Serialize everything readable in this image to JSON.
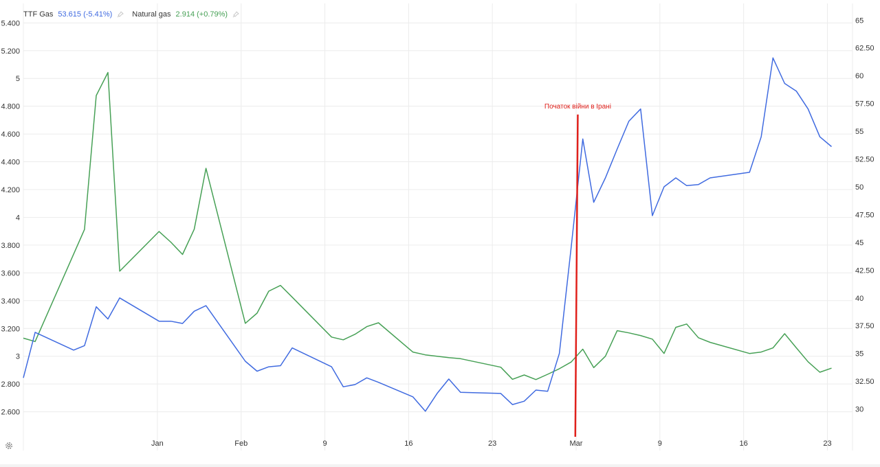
{
  "legend": {
    "s1_name": "TTF Gas",
    "s1_value": "53.615 (-5.41%)",
    "s2_name": "Natural gas",
    "s2_value": "2.914 (+0.79%)"
  },
  "chart_data": {
    "type": "line",
    "grid": true,
    "left_axis": {
      "range": [
        2.42,
        5.54
      ],
      "ticks": [
        2.6,
        2.8,
        3.0,
        3.2,
        3.4,
        3.6,
        3.8,
        4.0,
        4.2,
        4.4,
        4.6,
        4.8,
        5.0,
        5.2,
        5.4
      ],
      "tick_labels": [
        "2.600",
        "2.800",
        "3",
        "3.200",
        "3.400",
        "3.600",
        "3.800",
        "4",
        "4.200",
        "4.400",
        "4.600",
        "4.800",
        "5",
        "5.200",
        "5.400"
      ]
    },
    "right_axis": {
      "range": [
        27.5,
        66.5
      ],
      "ticks": [
        30,
        32.5,
        35,
        37.5,
        40,
        42.5,
        45,
        47.5,
        50,
        52.5,
        55,
        57.5,
        60,
        62.5,
        65
      ],
      "tick_labels": [
        "30",
        "32.50",
        "35",
        "37.50",
        "40",
        "42.50",
        "45",
        "47.50",
        "50",
        "52.50",
        "55",
        "57.50",
        "60",
        "62.50",
        "65"
      ]
    },
    "x_axis": {
      "range": [
        0,
        99
      ],
      "ticks": [
        16,
        26,
        36,
        46,
        56,
        66,
        76,
        86,
        96
      ],
      "tick_labels": [
        "Jan",
        "Feb",
        "9",
        "16",
        "23",
        "Mar",
        "9",
        "16",
        "23"
      ]
    },
    "series": [
      {
        "name": "TTF Gas",
        "axis": "right",
        "color": "#3f6ae0",
        "x": [
          0,
          1.4,
          6,
          7.3,
          8.7,
          10.1,
          11.5,
          16.2,
          17.6,
          19,
          20.4,
          21.8,
          26.5,
          27.9,
          29.3,
          30.7,
          32.1,
          36.8,
          38.2,
          39.6,
          41,
          42.4,
          46.5,
          48,
          49.4,
          50.8,
          52.2,
          57,
          58.4,
          59.8,
          61.2,
          62.6,
          64,
          65.4,
          66.8,
          68.1,
          69.5,
          70.9,
          72.3,
          73.7,
          75.1,
          76.5,
          77.9,
          79.2,
          80.6,
          82,
          86.7,
          88.1,
          89.5,
          90.9,
          92.3,
          93.7,
          95.1,
          96.5
        ],
        "values": [
          32.8,
          36.9,
          35.3,
          35.7,
          39.2,
          38.1,
          40.0,
          37.9,
          37.9,
          37.7,
          38.8,
          39.3,
          34.3,
          33.4,
          33.8,
          33.9,
          35.5,
          33.8,
          32.0,
          32.2,
          32.8,
          32.4,
          31.1,
          29.8,
          31.4,
          32.7,
          31.5,
          31.4,
          30.4,
          30.7,
          31.7,
          31.6,
          35.0,
          44.5,
          54.3,
          48.6,
          50.8,
          53.4,
          55.9,
          57.0,
          47.4,
          50.0,
          50.8,
          50.1,
          50.2,
          50.8,
          51.3,
          54.5,
          61.6,
          59.3,
          58.6,
          57.0,
          54.5,
          53.615
        ]
      },
      {
        "name": "Natural gas",
        "axis": "left",
        "color": "#46a055",
        "x": [
          0,
          1.4,
          7.3,
          8.7,
          10.1,
          11.5,
          16.2,
          17.6,
          19,
          20.4,
          21.8,
          26.5,
          27.9,
          29.3,
          30.7,
          32.1,
          36.8,
          38.2,
          39.6,
          41,
          42.4,
          46.5,
          48,
          49.4,
          50.8,
          52.2,
          57,
          58.4,
          59.8,
          61.2,
          62.6,
          64,
          65.4,
          66.8,
          68.1,
          69.5,
          70.9,
          72.3,
          73.7,
          75.1,
          76.5,
          77.9,
          79.2,
          80.6,
          82,
          86.7,
          88.1,
          89.5,
          90.9,
          92.3,
          93.7,
          95.1,
          96.5
        ],
        "values": [
          3.13,
          3.106,
          3.913,
          4.877,
          5.043,
          3.612,
          3.898,
          3.822,
          3.733,
          3.914,
          4.353,
          3.237,
          3.31,
          3.468,
          3.51,
          3.425,
          3.138,
          3.118,
          3.158,
          3.213,
          3.241,
          3.03,
          3.01,
          3.0,
          2.99,
          2.982,
          2.921,
          2.834,
          2.865,
          2.832,
          2.87,
          2.91,
          2.958,
          3.051,
          2.918,
          3.0,
          3.184,
          3.168,
          3.149,
          3.123,
          3.02,
          3.208,
          3.232,
          3.133,
          3.1,
          3.02,
          3.03,
          3.06,
          3.162,
          3.06,
          2.96,
          2.885,
          2.914
        ]
      }
    ],
    "annotation": {
      "text": "Початок війни в Ірані",
      "color": "#e0201b",
      "x_top": 66.2,
      "y_top_right": 56.5,
      "x_bottom": 65.9,
      "y_bottom_right": 27.5
    }
  }
}
